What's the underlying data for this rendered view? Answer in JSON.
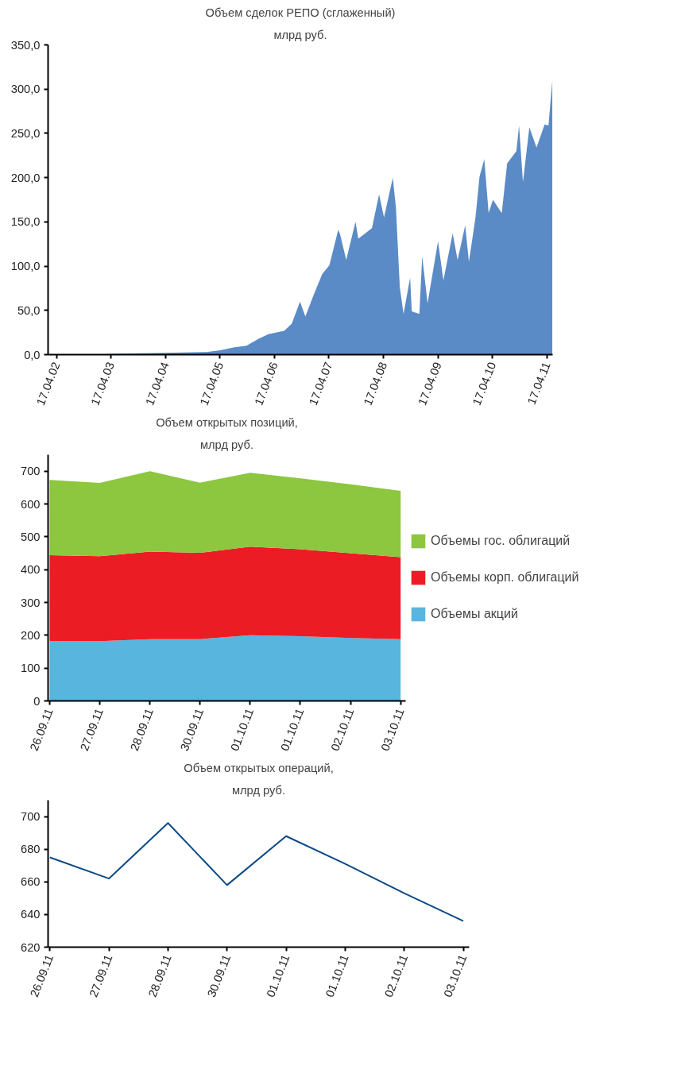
{
  "chart_data": [
    {
      "type": "area",
      "title": "Объем сделок РЕПО (сглаженный)",
      "subtitle": "млрд руб.",
      "grid": false,
      "legend": false,
      "xlim": [
        "2002-02-20",
        "2011-05-25"
      ],
      "xticks": [
        {
          "value": "2002-04-17",
          "label": "17.04.02"
        },
        {
          "value": "2003-04-17",
          "label": "17.04.03"
        },
        {
          "value": "2004-04-17",
          "label": "17.04.04"
        },
        {
          "value": "2005-04-17",
          "label": "17.04.05"
        },
        {
          "value": "2006-04-17",
          "label": "17.04.06"
        },
        {
          "value": "2007-04-17",
          "label": "17.04.07"
        },
        {
          "value": "2008-04-17",
          "label": "17.04.08"
        },
        {
          "value": "2009-04-17",
          "label": "17.04.09"
        },
        {
          "value": "2010-04-17",
          "label": "17.04.10"
        },
        {
          "value": "2011-04-17",
          "label": "17.04.11"
        }
      ],
      "ylim": [
        0,
        350
      ],
      "yticks": [
        {
          "value": 0,
          "label": "0,0"
        },
        {
          "value": 50,
          "label": "50,0"
        },
        {
          "value": 100,
          "label": "100,0"
        },
        {
          "value": 150,
          "label": "150,0"
        },
        {
          "value": 200,
          "label": "200,0"
        },
        {
          "value": 250,
          "label": "250,0"
        },
        {
          "value": 300,
          "label": "300,0"
        },
        {
          "value": 350,
          "label": "350,0"
        }
      ],
      "x": [
        "2002-04-17",
        "2003-01-15",
        "2003-04-17",
        "2004-04-17",
        "2005-01-15",
        "2005-04-20",
        "2005-07-15",
        "2005-10-12",
        "2006-01-01",
        "2006-03-07",
        "2006-06-21",
        "2006-08-11",
        "2006-10-05",
        "2006-11-10",
        "2007-01-01",
        "2007-03-03",
        "2007-04-20",
        "2007-06-18",
        "2007-06-29",
        "2007-08-11",
        "2007-10-12",
        "2007-10-31",
        "2008-01-30",
        "2008-03-18",
        "2008-04-20",
        "2008-06-18",
        "2008-07-09",
        "2008-08-04",
        "2008-08-29",
        "2008-10-12",
        "2008-10-23",
        "2008-12-13",
        "2009-01-01",
        "2009-02-06",
        "2009-04-17",
        "2009-05-23",
        "2009-07-24",
        "2009-08-26",
        "2009-10-16",
        "2009-11-10",
        "2009-12-24",
        "2010-01-20",
        "2010-02-21",
        "2010-03-22",
        "2010-04-20",
        "2010-06-18",
        "2010-07-24",
        "2010-09-24",
        "2010-10-12",
        "2010-11-07",
        "2010-12-20",
        "2011-02-06",
        "2011-04-01",
        "2011-04-27",
        "2011-05-23"
      ],
      "series": [
        {
          "color": "#5b8bc6",
          "values": [
            0,
            0,
            1,
            2,
            3,
            5,
            8,
            10,
            18,
            23,
            27,
            35,
            60,
            43,
            66,
            91,
            101,
            141,
            137,
            107,
            150,
            131,
            143,
            181,
            155,
            200,
            166,
            76,
            46,
            87,
            49,
            46,
            111,
            58,
            128,
            84,
            137,
            107,
            146,
            105,
            155,
            201,
            221,
            160,
            175,
            160,
            216,
            230,
            259,
            195,
            257,
            234,
            260,
            259,
            310
          ]
        }
      ]
    },
    {
      "type": "area",
      "stacked": true,
      "title": "Объем открытых позиций,",
      "subtitle": "млрд руб.",
      "grid": false,
      "legend": "right",
      "categories": [
        "26.09.11",
        "27.09.11",
        "28.09.11",
        "30.09.11",
        "01.10.11",
        "01.10.11",
        "02.10.11",
        "03.10.11"
      ],
      "ylim": [
        0,
        750
      ],
      "yticks": [
        0,
        100,
        200,
        300,
        400,
        500,
        600,
        700
      ],
      "series": [
        {
          "name": "Объемы акций",
          "color": "#57b5de",
          "values": [
            182,
            182,
            188,
            188,
            200,
            197,
            192,
            188
          ]
        },
        {
          "name": "Объемы корп. облигаций",
          "color": "#ec1c24",
          "values": [
            262,
            259,
            267,
            263,
            270,
            265,
            258,
            250
          ]
        },
        {
          "name": "Объемы гос. облигаций",
          "color": "#8dc63f",
          "values": [
            229,
            223,
            245,
            214,
            225,
            216,
            210,
            202
          ]
        }
      ]
    },
    {
      "type": "line",
      "title": "Объем открытых операций,",
      "subtitle": "млрд руб.",
      "grid": false,
      "legend": false,
      "marker": "none",
      "line_style": "solid",
      "categories": [
        "26.09.11",
        "27.09.11",
        "28.09.11",
        "30.09.11",
        "01.10.11",
        "01.10.11",
        "02.10.11",
        "03.10.11"
      ],
      "ylim": [
        620,
        710
      ],
      "yticks": [
        620,
        640,
        660,
        680,
        700
      ],
      "series": [
        {
          "color": "#0b4a86",
          "values": [
            675,
            662,
            696,
            658,
            688,
            671,
            653,
            636
          ]
        }
      ]
    }
  ]
}
